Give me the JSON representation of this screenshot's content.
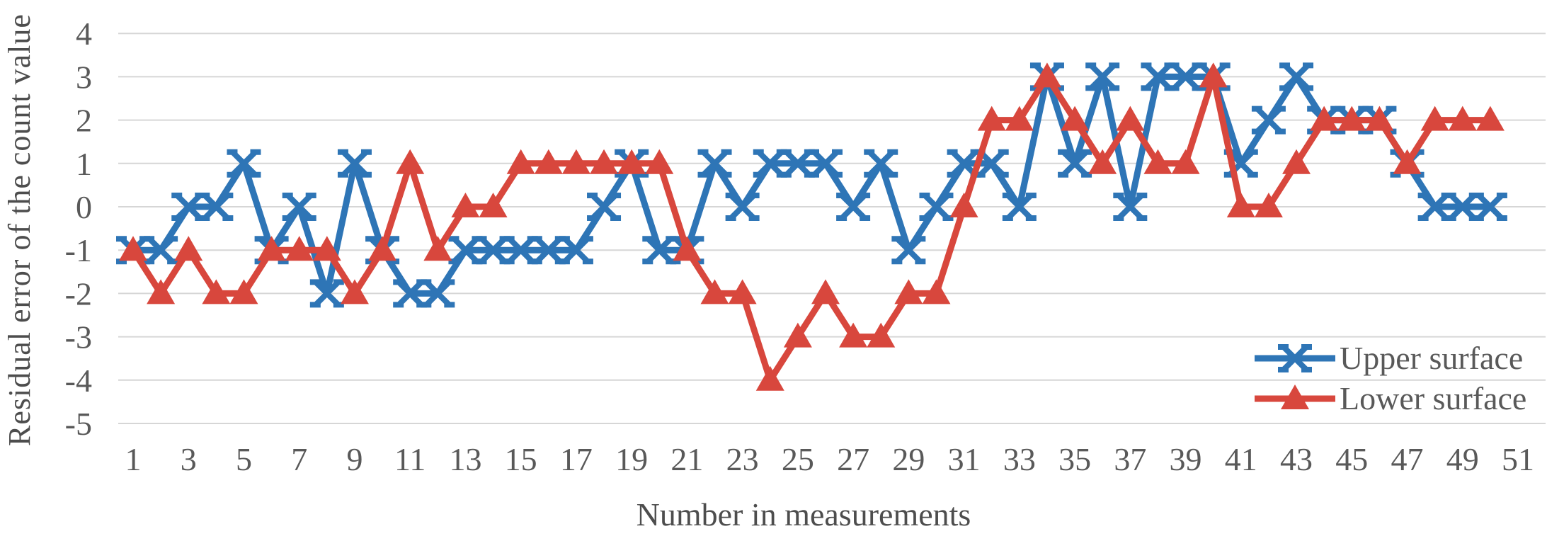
{
  "colors": {
    "upper_series": "#2E75B6",
    "lower_series": "#D8473D",
    "grid": "#D6D6D6",
    "text": "#595959"
  },
  "chart_data": {
    "type": "line",
    "title": "",
    "xlabel": "Number in measurements",
    "ylabel": "Residual error of the count value",
    "grid": true,
    "legend_position": "inside-lower-right",
    "ylim": [
      -5,
      4
    ],
    "yticks": [
      4,
      3,
      2,
      1,
      0,
      -1,
      -2,
      -3,
      -4,
      -5
    ],
    "x_tick_labels": [
      1,
      3,
      5,
      7,
      9,
      11,
      13,
      15,
      17,
      19,
      21,
      23,
      25,
      27,
      29,
      31,
      33,
      35,
      37,
      39,
      41,
      43,
      45,
      47,
      49,
      51
    ],
    "x": [
      1,
      2,
      3,
      4,
      5,
      6,
      7,
      8,
      9,
      10,
      11,
      12,
      13,
      14,
      15,
      16,
      17,
      18,
      19,
      20,
      21,
      22,
      23,
      24,
      25,
      26,
      27,
      28,
      29,
      30,
      31,
      32,
      33,
      34,
      35,
      36,
      37,
      38,
      39,
      40,
      41,
      42,
      43,
      44,
      45,
      46,
      47,
      48,
      49,
      50
    ],
    "series": [
      {
        "name": "Upper surface",
        "color": "#2E75B6",
        "marker": "x",
        "values": [
          -1,
          -1,
          0,
          0,
          1,
          -1,
          0,
          -2,
          1,
          -1,
          -2,
          -2,
          -1,
          -1,
          -1,
          -1,
          -1,
          0,
          1,
          -1,
          -1,
          1,
          0,
          1,
          1,
          1,
          0,
          1,
          -1,
          0,
          1,
          1,
          0,
          3,
          1,
          3,
          0,
          3,
          3,
          3,
          1,
          2,
          3,
          2,
          2,
          2,
          1,
          0,
          0,
          0
        ]
      },
      {
        "name": "Lower surface",
        "color": "#D8473D",
        "marker": "triangle",
        "values": [
          -1,
          -2,
          -1,
          -2,
          -2,
          -1,
          -1,
          -1,
          -2,
          -1,
          1,
          -1,
          0,
          0,
          1,
          1,
          1,
          1,
          1,
          1,
          -1,
          -2,
          -2,
          -4,
          -3,
          -2,
          -3,
          -3,
          -2,
          -2,
          0,
          2,
          2,
          3,
          2,
          1,
          2,
          1,
          1,
          3,
          0,
          0,
          1,
          2,
          2,
          2,
          1,
          2,
          2,
          2
        ]
      }
    ]
  }
}
